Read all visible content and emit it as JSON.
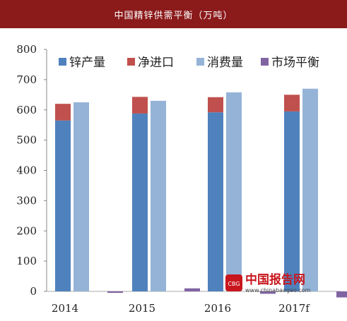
{
  "header": {
    "title": "中国精锌供需平衡（万吨）"
  },
  "watermark": {
    "name": "中国报告网",
    "url": "www.chinabaogao.com",
    "logo_text": "CBG"
  },
  "chart_data": {
    "type": "bar",
    "title": "中国精锌供需平衡（万吨）",
    "categories": [
      "2014",
      "2015",
      "2016",
      "2017f"
    ],
    "ylim": [
      0,
      800
    ],
    "yticks": [
      0,
      100,
      200,
      300,
      400,
      500,
      600,
      700,
      800
    ],
    "grid": false,
    "legend_position": "top",
    "series": [
      {
        "name": "锌产量",
        "values": [
          565,
          588,
          592,
          595
        ],
        "color": "#4f81bd",
        "stack": "supply"
      },
      {
        "name": "净进口",
        "values": [
          55,
          55,
          50,
          55
        ],
        "color": "#c0504d",
        "stack": "supply"
      },
      {
        "name": "消费量",
        "values": [
          625,
          630,
          658,
          670
        ],
        "color": "#95b3d7",
        "stack": "consumption"
      },
      {
        "name": "市场平衡",
        "values": [
          -5,
          10,
          -8,
          -20
        ],
        "color": "#8064a2",
        "stack": "balance"
      }
    ]
  }
}
